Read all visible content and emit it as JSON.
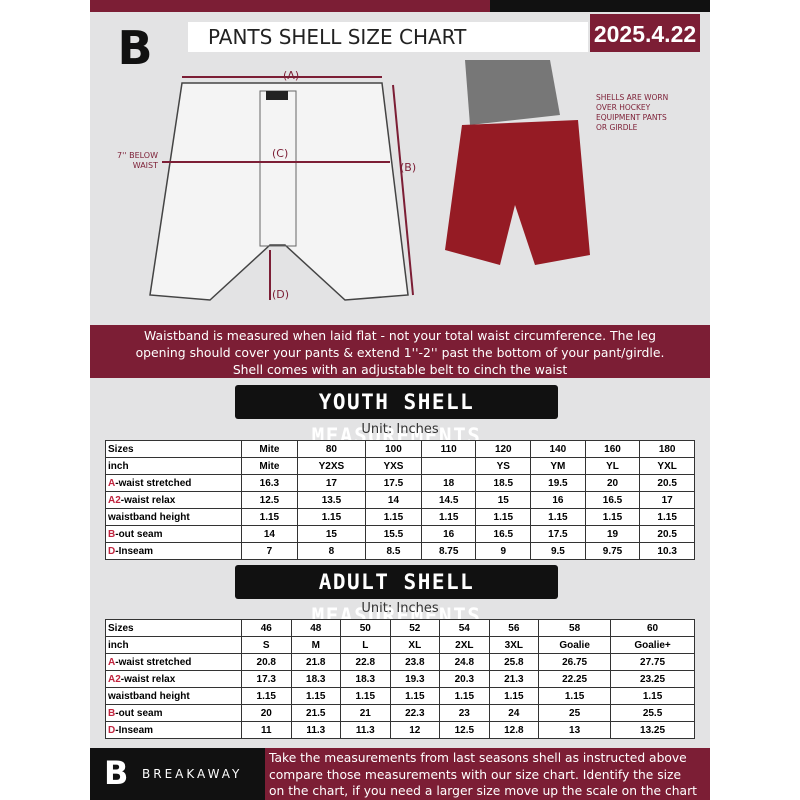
{
  "header": {
    "title": "PANTS SHELL SIZE CHART",
    "date": "2025.4.22"
  },
  "diagram": {
    "a": "(A)",
    "b": "(B)",
    "c": "(C)",
    "d": "(D)",
    "c_note": [
      "7'' BELOW",
      "WAIST"
    ],
    "note": [
      "SHELLS ARE WORN",
      "OVER HOCKEY",
      "EQUIPMENT PANTS",
      "OR GIRDLE"
    ]
  },
  "banner": [
    "Waistband is measured when laid flat - not your total waist circumference. The leg",
    "opening should cover your pants & extend 1''-2'' past the bottom of your pant/girdle.",
    "Shell comes with an adjustable belt to cinch the waist"
  ],
  "tables": [
    {
      "title": "YOUTH SHELL MEASUREMENTS",
      "unit": "Unit: Inches",
      "rows": [
        {
          "label": "Sizes",
          "cells": [
            "Mite",
            "80",
            "100",
            "110",
            "120",
            "140",
            "160",
            "180"
          ]
        },
        {
          "label": "inch",
          "cells": [
            "Mite",
            "Y2XS",
            "YXS",
            null,
            "YS",
            "YM",
            "YL",
            "YXL"
          ]
        },
        {
          "key": "A",
          "label": "-waist stretched",
          "cells": [
            "16.3",
            "17",
            "17.5",
            "18",
            "18.5",
            "19.5",
            "20",
            "20.5"
          ]
        },
        {
          "key": "A2",
          "label": "-waist relax",
          "cells": [
            "12.5",
            "13.5",
            "14",
            "14.5",
            "15",
            "16",
            "16.5",
            "17"
          ]
        },
        {
          "label": "waistband height",
          "cells": [
            "1.15",
            "1.15",
            "1.15",
            "1.15",
            "1.15",
            "1.15",
            "1.15",
            "1.15"
          ]
        },
        {
          "key": "B",
          "label": "-out seam",
          "cells": [
            "14",
            "15",
            "15.5",
            "16",
            "16.5",
            "17.5",
            "19",
            "20.5"
          ]
        },
        {
          "key": "D",
          "label": "-Inseam",
          "cells": [
            "7",
            "8",
            "8.5",
            "8.75",
            "9",
            "9.5",
            "9.75",
            "10.3"
          ]
        }
      ]
    },
    {
      "title": "ADULT SHELL MEASUREMENTS",
      "unit": "Unit: Inches",
      "rows": [
        {
          "label": "Sizes",
          "cells": [
            "46",
            "48",
            "50",
            "52",
            "54",
            "56",
            "58",
            "60"
          ]
        },
        {
          "label": "inch",
          "cells": [
            "S",
            "M",
            "L",
            "XL",
            "2XL",
            "3XL",
            "Goalie",
            "Goalie+"
          ]
        },
        {
          "key": "A",
          "label": "-waist stretched",
          "cells": [
            "20.8",
            "21.8",
            "22.8",
            "23.8",
            "24.8",
            "25.8",
            "26.75",
            "27.75"
          ]
        },
        {
          "key": "A2",
          "label": "-waist relax",
          "cells": [
            "17.3",
            "18.3",
            "18.3",
            "19.3",
            "20.3",
            "21.3",
            "22.25",
            "23.25"
          ]
        },
        {
          "label": "waistband height",
          "cells": [
            "1.15",
            "1.15",
            "1.15",
            "1.15",
            "1.15",
            "1.15",
            "1.15",
            "1.15"
          ]
        },
        {
          "key": "B",
          "label": "-out seam",
          "cells": [
            "20",
            "21.5",
            "21",
            "22.3",
            "23",
            "24",
            "25",
            "25.5"
          ]
        },
        {
          "key": "D",
          "label": "-Inseam",
          "cells": [
            "11",
            "11.3",
            "11.3",
            "12",
            "12.5",
            "12.8",
            "13",
            "13.25"
          ]
        }
      ]
    }
  ],
  "footer": {
    "brand": "BREAKAWAY",
    "text": [
      "Take the measurements from last seasons shell as instructed above",
      "compare those measurements  with our size chart. Identify the size",
      "on the chart, if you need a larger size move up the scale on the chart"
    ]
  }
}
